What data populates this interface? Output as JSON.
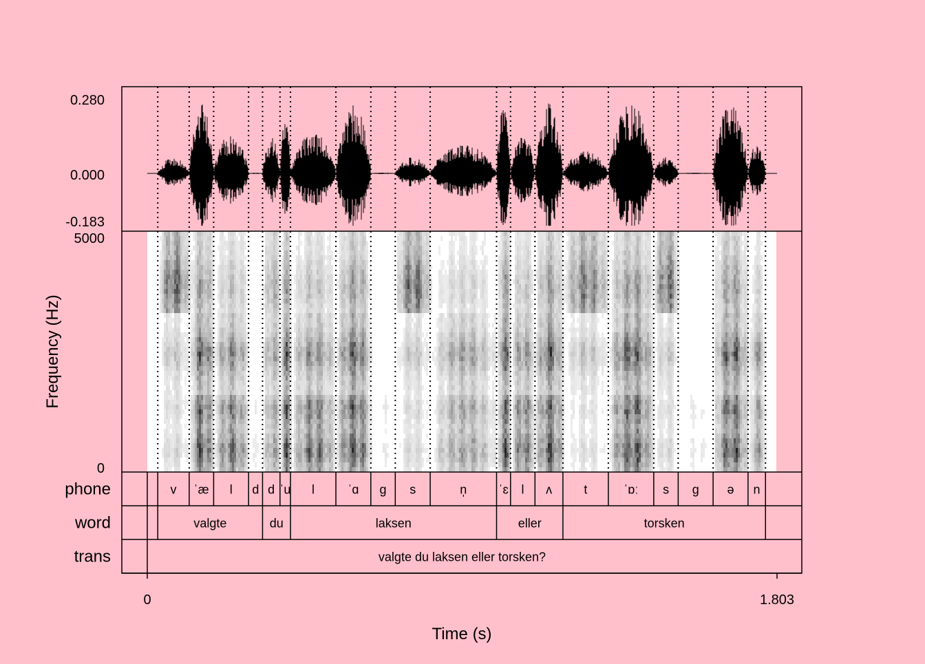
{
  "chart_data": {
    "type": "waveform+spectrogram+textgrid",
    "x": {
      "label": "Time (s)",
      "range": [
        0,
        1.803
      ],
      "tick_labels": [
        "0",
        "1.803"
      ]
    },
    "waveform": {
      "y_range": [
        -0.183,
        0.28
      ],
      "tick_labels": [
        "0.280",
        "0.000",
        "-0.183"
      ]
    },
    "spectrogram": {
      "ylabel": "Frequency (Hz)",
      "y_range": [
        0,
        5000
      ],
      "tick_labels": [
        "5000",
        "0"
      ]
    },
    "tiers": [
      {
        "name": "phone",
        "intervals": [
          {
            "start": 0.0,
            "end": 0.03,
            "label": ""
          },
          {
            "start": 0.03,
            "end": 0.12,
            "label": "v"
          },
          {
            "start": 0.12,
            "end": 0.19,
            "label": "ˈæ"
          },
          {
            "start": 0.19,
            "end": 0.29,
            "label": "l"
          },
          {
            "start": 0.29,
            "end": 0.33,
            "label": "d"
          },
          {
            "start": 0.33,
            "end": 0.38,
            "label": "d"
          },
          {
            "start": 0.38,
            "end": 0.41,
            "label": "ˈu"
          },
          {
            "start": 0.41,
            "end": 0.54,
            "label": "l"
          },
          {
            "start": 0.54,
            "end": 0.64,
            "label": "ˈɑ"
          },
          {
            "start": 0.64,
            "end": 0.71,
            "label": "g"
          },
          {
            "start": 0.71,
            "end": 0.81,
            "label": "s"
          },
          {
            "start": 0.81,
            "end": 1.0,
            "label": "n̩"
          },
          {
            "start": 1.0,
            "end": 1.04,
            "label": "ˈɛ"
          },
          {
            "start": 1.04,
            "end": 1.11,
            "label": "l"
          },
          {
            "start": 1.11,
            "end": 1.19,
            "label": "ʌ"
          },
          {
            "start": 1.19,
            "end": 1.32,
            "label": "t"
          },
          {
            "start": 1.32,
            "end": 1.45,
            "label": "ˈɒː"
          },
          {
            "start": 1.45,
            "end": 1.52,
            "label": "s"
          },
          {
            "start": 1.52,
            "end": 1.62,
            "label": "g"
          },
          {
            "start": 1.62,
            "end": 1.72,
            "label": "ə"
          },
          {
            "start": 1.72,
            "end": 1.77,
            "label": "n"
          },
          {
            "start": 1.77,
            "end": 1.803,
            "label": ""
          }
        ]
      },
      {
        "name": "word",
        "intervals": [
          {
            "start": 0.0,
            "end": 0.03,
            "label": ""
          },
          {
            "start": 0.03,
            "end": 0.33,
            "label": "valgte"
          },
          {
            "start": 0.33,
            "end": 0.41,
            "label": "du"
          },
          {
            "start": 0.41,
            "end": 1.0,
            "label": "laksen"
          },
          {
            "start": 1.0,
            "end": 1.19,
            "label": "eller"
          },
          {
            "start": 1.19,
            "end": 1.77,
            "label": "torsken"
          },
          {
            "start": 1.77,
            "end": 1.803,
            "label": ""
          }
        ]
      },
      {
        "name": "trans",
        "intervals": [
          {
            "start": 0.0,
            "end": 1.803,
            "label": "valgte du laksen eller torsken?"
          }
        ]
      }
    ],
    "segments": [
      {
        "start": 0.0,
        "end": 0.03,
        "type": "sil"
      },
      {
        "start": 0.03,
        "end": 0.12,
        "type": "fric"
      },
      {
        "start": 0.12,
        "end": 0.19,
        "type": "vowel"
      },
      {
        "start": 0.19,
        "end": 0.29,
        "type": "son"
      },
      {
        "start": 0.29,
        "end": 0.33,
        "type": "closure"
      },
      {
        "start": 0.33,
        "end": 0.38,
        "type": "stop"
      },
      {
        "start": 0.38,
        "end": 0.41,
        "type": "vowel"
      },
      {
        "start": 0.41,
        "end": 0.54,
        "type": "son"
      },
      {
        "start": 0.54,
        "end": 0.64,
        "type": "vowel"
      },
      {
        "start": 0.64,
        "end": 0.71,
        "type": "closure"
      },
      {
        "start": 0.71,
        "end": 0.81,
        "type": "fric"
      },
      {
        "start": 0.81,
        "end": 1.0,
        "type": "nasal"
      },
      {
        "start": 1.0,
        "end": 1.04,
        "type": "vowel"
      },
      {
        "start": 1.04,
        "end": 1.11,
        "type": "son"
      },
      {
        "start": 1.11,
        "end": 1.19,
        "type": "vowel"
      },
      {
        "start": 1.19,
        "end": 1.32,
        "type": "burst"
      },
      {
        "start": 1.32,
        "end": 1.45,
        "type": "vowel"
      },
      {
        "start": 1.45,
        "end": 1.52,
        "type": "fric"
      },
      {
        "start": 1.52,
        "end": 1.62,
        "type": "closure"
      },
      {
        "start": 1.62,
        "end": 1.72,
        "type": "vowel"
      },
      {
        "start": 1.72,
        "end": 1.77,
        "type": "nasal"
      },
      {
        "start": 1.77,
        "end": 1.803,
        "type": "sil"
      }
    ],
    "colors": {
      "background": "#ffc0cb",
      "ink": "#000000",
      "spectrogram_bg": "#ffffff"
    }
  }
}
